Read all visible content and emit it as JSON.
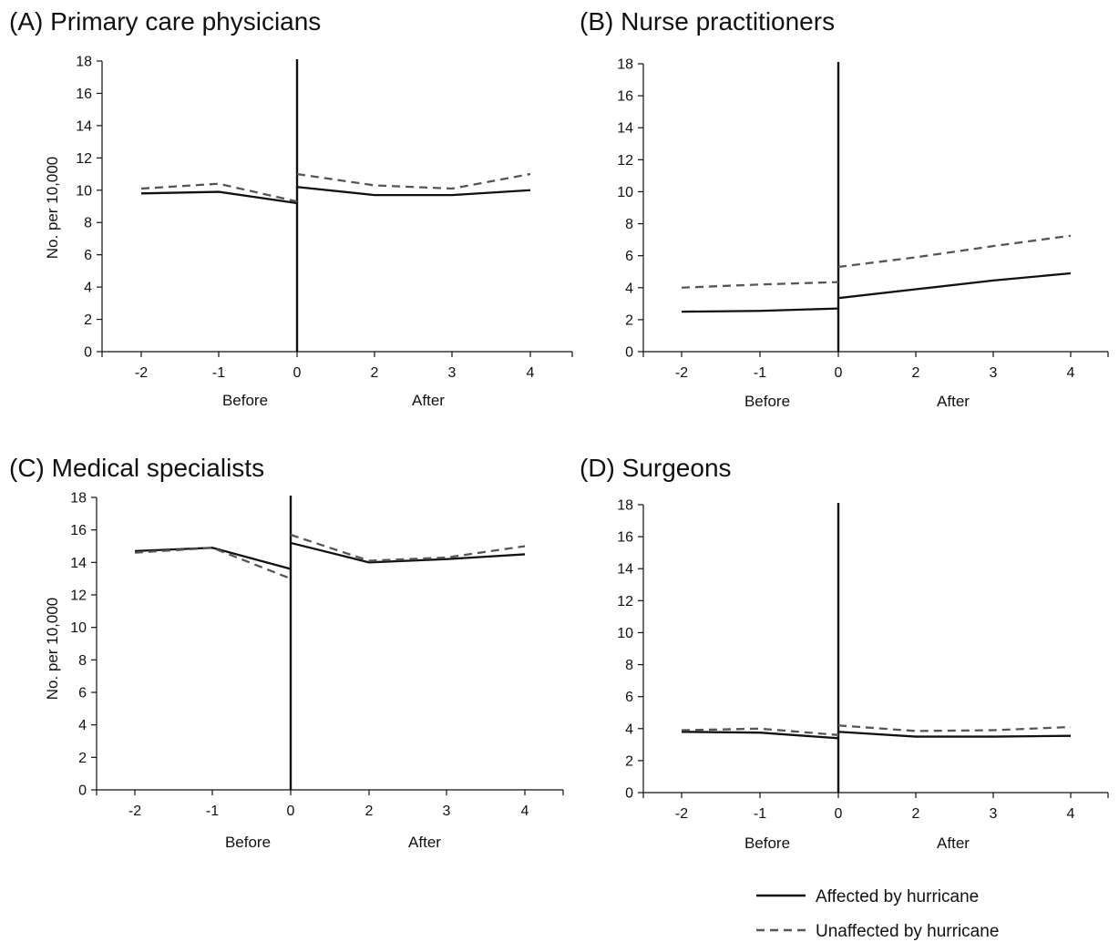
{
  "colors": {
    "affected": "#111111",
    "unaffected": "#555555",
    "axis": "#111111",
    "background": "#ffffff"
  },
  "legend": {
    "affected_label": "Affected by hurricane",
    "unaffected_label": "Unaffected by hurricane"
  },
  "chart_data": [
    {
      "type": "line",
      "title": "(A) Primary care physicians",
      "ylabel": "No. per 10,000",
      "ylim": [
        0,
        18
      ],
      "yticks": [
        0,
        2,
        4,
        6,
        8,
        10,
        12,
        14,
        16,
        18
      ],
      "x_tick_labels": [
        "-2",
        "-1",
        "0",
        "2",
        "3",
        "4"
      ],
      "period_labels": [
        "Before",
        "After"
      ],
      "series": [
        {
          "name": "Affected by hurricane",
          "style": "solid",
          "before": [
            [
              -2,
              9.8
            ],
            [
              -1,
              9.9
            ],
            [
              0,
              9.2
            ]
          ],
          "after": [
            [
              0,
              10.2
            ],
            [
              2,
              9.7
            ],
            [
              3,
              9.7
            ],
            [
              4,
              10.0
            ]
          ]
        },
        {
          "name": "Unaffected by hurricane",
          "style": "dashed",
          "before": [
            [
              -2,
              10.1
            ],
            [
              -1,
              10.4
            ],
            [
              0,
              9.3
            ]
          ],
          "after": [
            [
              0,
              11.0
            ],
            [
              2,
              10.3
            ],
            [
              3,
              10.1
            ],
            [
              4,
              11.0
            ]
          ]
        }
      ]
    },
    {
      "type": "line",
      "title": "(B) Nurse practitioners",
      "ylabel": "",
      "ylim": [
        0,
        18
      ],
      "yticks": [
        0,
        2,
        4,
        6,
        8,
        10,
        12,
        14,
        16,
        18
      ],
      "x_tick_labels": [
        "-2",
        "-1",
        "0",
        "2",
        "3",
        "4"
      ],
      "period_labels": [
        "Before",
        "After"
      ],
      "series": [
        {
          "name": "Affected by hurricane",
          "style": "solid",
          "before": [
            [
              -2,
              2.5
            ],
            [
              -1,
              2.55
            ],
            [
              0,
              2.7
            ]
          ],
          "after": [
            [
              0,
              3.35
            ],
            [
              2,
              3.9
            ],
            [
              3,
              4.45
            ],
            [
              4,
              4.9
            ]
          ]
        },
        {
          "name": "Unaffected by hurricane",
          "style": "dashed",
          "before": [
            [
              -2,
              4.0
            ],
            [
              -1,
              4.2
            ],
            [
              0,
              4.35
            ]
          ],
          "after": [
            [
              0,
              5.3
            ],
            [
              2,
              5.9
            ],
            [
              3,
              6.6
            ],
            [
              4,
              7.25
            ]
          ]
        }
      ]
    },
    {
      "type": "line",
      "title": "(C) Medical specialists",
      "ylabel": "No. per 10,000",
      "ylim": [
        0,
        18
      ],
      "yticks": [
        0,
        2,
        4,
        6,
        8,
        10,
        12,
        14,
        16,
        18
      ],
      "x_tick_labels": [
        "-2",
        "-1",
        "0",
        "2",
        "3",
        "4"
      ],
      "period_labels": [
        "Before",
        "After"
      ],
      "series": [
        {
          "name": "Affected by hurricane",
          "style": "solid",
          "before": [
            [
              -2,
              14.7
            ],
            [
              -1,
              14.9
            ],
            [
              0,
              13.6
            ]
          ],
          "after": [
            [
              0,
              15.2
            ],
            [
              2,
              14.0
            ],
            [
              3,
              14.2
            ],
            [
              4,
              14.5
            ]
          ]
        },
        {
          "name": "Unaffected by hurricane",
          "style": "dashed",
          "before": [
            [
              -2,
              14.6
            ],
            [
              -1,
              14.9
            ],
            [
              0,
              13.0
            ]
          ],
          "after": [
            [
              0,
              15.7
            ],
            [
              2,
              14.1
            ],
            [
              3,
              14.3
            ],
            [
              4,
              15.0
            ]
          ]
        }
      ]
    },
    {
      "type": "line",
      "title": "(D) Surgeons",
      "ylabel": "",
      "ylim": [
        0,
        18
      ],
      "yticks": [
        0,
        2,
        4,
        6,
        8,
        10,
        12,
        14,
        16,
        18
      ],
      "x_tick_labels": [
        "-2",
        "-1",
        "0",
        "2",
        "3",
        "4"
      ],
      "period_labels": [
        "Before",
        "After"
      ],
      "series": [
        {
          "name": "Affected by hurricane",
          "style": "solid",
          "before": [
            [
              -2,
              3.8
            ],
            [
              -1,
              3.75
            ],
            [
              0,
              3.4
            ]
          ],
          "after": [
            [
              0,
              3.8
            ],
            [
              2,
              3.5
            ],
            [
              3,
              3.5
            ],
            [
              4,
              3.55
            ]
          ]
        },
        {
          "name": "Unaffected by hurricane",
          "style": "dashed",
          "before": [
            [
              -2,
              3.9
            ],
            [
              -1,
              4.0
            ],
            [
              0,
              3.6
            ]
          ],
          "after": [
            [
              0,
              4.2
            ],
            [
              2,
              3.85
            ],
            [
              3,
              3.9
            ],
            [
              4,
              4.1
            ]
          ]
        }
      ]
    }
  ]
}
